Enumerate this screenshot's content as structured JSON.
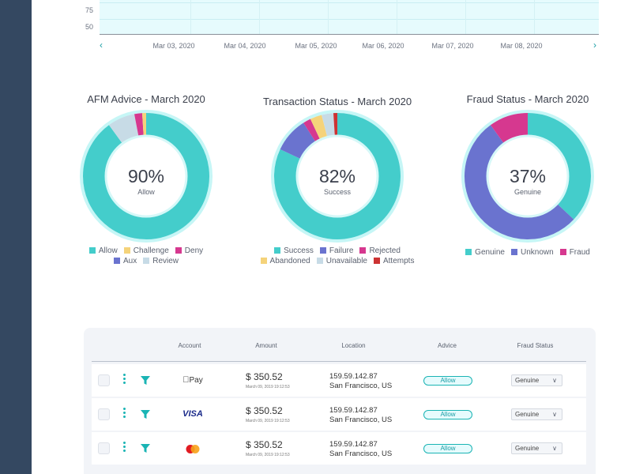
{
  "top_chart": {
    "y_ticks": [
      "75",
      "50"
    ],
    "x_ticks": [
      "Mar 03, 2020",
      "Mar 04, 2020",
      "Mar 05, 2020",
      "Mar 06, 2020",
      "Mar 07, 2020",
      "Mar 08, 2020"
    ],
    "prev_icon": "chevron-left-icon",
    "next_icon": "chevron-right-icon"
  },
  "chart_data": [
    {
      "type": "pie",
      "title": "AFM Advice - March 2020",
      "center_value": "90%",
      "center_label": "Allow",
      "categories": [
        "Allow",
        "Challenge",
        "Deny",
        "Aux",
        "Review"
      ],
      "values": [
        90,
        1,
        2,
        0,
        7
      ],
      "slice_order": [
        "Allow",
        "Review",
        "Deny",
        "Challenge"
      ],
      "colors": {
        "Allow": "#44cdcb",
        "Challenge": "#f5d37a",
        "Deny": "#d6388f",
        "Aux": "#6a73cf",
        "Review": "#c7dbe6"
      },
      "legend_rows": [
        [
          "Allow",
          "Challenge",
          "Deny"
        ],
        [
          "Aux",
          "Review"
        ]
      ]
    },
    {
      "type": "pie",
      "title": "Transaction Status - March 2020",
      "center_value": "82%",
      "center_label": "Success",
      "categories": [
        "Success",
        "Failure",
        "Rejected",
        "Abandoned",
        "Unavailable",
        "Attempts"
      ],
      "values": [
        82,
        9,
        2,
        3,
        3,
        1
      ],
      "slice_order": [
        "Success",
        "Failure",
        "Rejected",
        "Abandoned",
        "Unavailable",
        "Attempts"
      ],
      "colors": {
        "Success": "#44cdcb",
        "Failure": "#6a73cf",
        "Rejected": "#d6388f",
        "Abandoned": "#f5d37a",
        "Unavailable": "#c7dbe6",
        "Attempts": "#cc3333"
      },
      "legend_rows": [
        [
          "Success",
          "Failure",
          "Rejected"
        ],
        [
          "Abandoned",
          "Unavailable",
          "Attempts"
        ]
      ]
    },
    {
      "type": "pie",
      "title": "Fraud Status - March 2020",
      "center_value": "37%",
      "center_label": "Genuine",
      "categories": [
        "Genuine",
        "Unknown",
        "Fraud"
      ],
      "values": [
        37,
        53,
        10
      ],
      "slice_order": [
        "Genuine",
        "Unknown",
        "Fraud"
      ],
      "colors": {
        "Genuine": "#44cdcb",
        "Unknown": "#6a73cf",
        "Fraud": "#d6388f"
      },
      "legend_rows": [
        [
          "Genuine",
          "Unknown",
          "Fraud"
        ]
      ]
    }
  ],
  "table": {
    "headers": {
      "account": "Account",
      "amount": "Amount",
      "location": "Location",
      "advice": "Advice",
      "fraud_status": "Fraud Status"
    },
    "rows": [
      {
        "account_icon": "apple-pay-icon",
        "account_text": "Pay",
        "amount": "$ 350.52",
        "date": "March 09, 2019 19:12:53",
        "ip": "159.59.142.87",
        "city": "San Francisco, US",
        "advice": "Allow",
        "fraud_status": "Genuine"
      },
      {
        "account_icon": "visa-icon",
        "account_text": "VISA",
        "amount": "$ 350.52",
        "date": "March 09, 2019 19:12:53",
        "ip": "159.59.142.87",
        "city": "San Francisco, US",
        "advice": "Allow",
        "fraud_status": "Genuine"
      },
      {
        "account_icon": "mastercard-icon",
        "account_text": "",
        "amount": "$ 350.52",
        "date": "March 09, 2019 19:12:53",
        "ip": "159.59.142.87",
        "city": "San Francisco, US",
        "advice": "Allow",
        "fraud_status": "Genuine"
      }
    ]
  }
}
